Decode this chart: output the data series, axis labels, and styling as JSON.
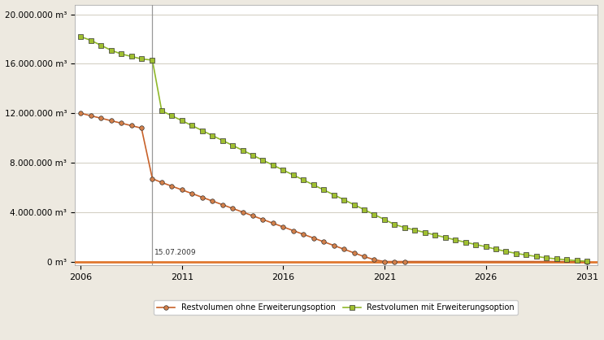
{
  "bg_color": "#ede9e0",
  "plot_bg_color": "#ffffff",
  "grid_color": "#d0ccc0",
  "vline_x": 2009.54,
  "vline_label": "15.07.2009",
  "xlim": [
    2005.7,
    2031.5
  ],
  "ylim": [
    -300000,
    20800000
  ],
  "yticks": [
    0,
    4000000,
    8000000,
    12000000,
    16000000,
    20000000
  ],
  "ytick_labels": [
    "0 m³",
    "4.000.000 m³",
    "8.000.000 m³",
    "12.000.000 m³",
    "16.000.000 m³",
    "20.000.000 m³"
  ],
  "xticks": [
    2006,
    2011,
    2016,
    2021,
    2026,
    2031
  ],
  "line1_color": "#c8622a",
  "line1_marker_face": "#d4804a",
  "line1_marker_edge": "#333333",
  "line2_color": "#90b82a",
  "line2_marker_face": "#a0c030",
  "line2_marker_edge": "#333333",
  "zero_line_color": "#e07830",
  "legend_label1": "Restvolumen ohne Erweiterungsoption",
  "legend_label2": "Restvolumen mit Erweiterungsoption",
  "line1_x": [
    2006.0,
    2006.5,
    2007.0,
    2007.5,
    2008.0,
    2008.5,
    2009.0,
    2009.54,
    2010.0,
    2010.5,
    2011.0,
    2011.5,
    2012.0,
    2012.5,
    2013.0,
    2013.5,
    2014.0,
    2014.5,
    2015.0,
    2015.5,
    2016.0,
    2016.5,
    2017.0,
    2017.5,
    2018.0,
    2018.5,
    2019.0,
    2019.5,
    2020.0,
    2020.5,
    2021.0,
    2021.5,
    2022.0,
    2031.0
  ],
  "line1_y": [
    12000000,
    11800000,
    11600000,
    11400000,
    11200000,
    11000000,
    10800000,
    6700000,
    6400000,
    6100000,
    5800000,
    5500000,
    5200000,
    4900000,
    4600000,
    4300000,
    4000000,
    3700000,
    3400000,
    3100000,
    2800000,
    2500000,
    2200000,
    1900000,
    1600000,
    1300000,
    1000000,
    700000,
    400000,
    150000,
    0,
    0,
    0,
    0
  ],
  "line2_x": [
    2006.0,
    2006.5,
    2007.0,
    2007.5,
    2008.0,
    2008.5,
    2009.0,
    2009.54,
    2010.0,
    2010.5,
    2011.0,
    2011.5,
    2012.0,
    2012.5,
    2013.0,
    2013.5,
    2014.0,
    2014.5,
    2015.0,
    2015.5,
    2016.0,
    2016.5,
    2017.0,
    2017.5,
    2018.0,
    2018.5,
    2019.0,
    2019.5,
    2020.0,
    2020.5,
    2021.0,
    2021.5,
    2022.0,
    2022.5,
    2023.0,
    2023.5,
    2024.0,
    2024.5,
    2025.0,
    2025.5,
    2026.0,
    2026.5,
    2027.0,
    2027.5,
    2028.0,
    2028.5,
    2029.0,
    2029.5,
    2030.0,
    2030.5,
    2031.0
  ],
  "line2_y": [
    18200000,
    17900000,
    17500000,
    17100000,
    16800000,
    16600000,
    16400000,
    16300000,
    12200000,
    11800000,
    11400000,
    11000000,
    10600000,
    10200000,
    9800000,
    9400000,
    9000000,
    8600000,
    8200000,
    7800000,
    7400000,
    7000000,
    6600000,
    6200000,
    5800000,
    5400000,
    5000000,
    4600000,
    4200000,
    3800000,
    3400000,
    3000000,
    2750000,
    2550000,
    2350000,
    2150000,
    1950000,
    1750000,
    1560000,
    1380000,
    1200000,
    1000000,
    820000,
    660000,
    530000,
    410000,
    300000,
    210000,
    140000,
    75000,
    20000
  ]
}
